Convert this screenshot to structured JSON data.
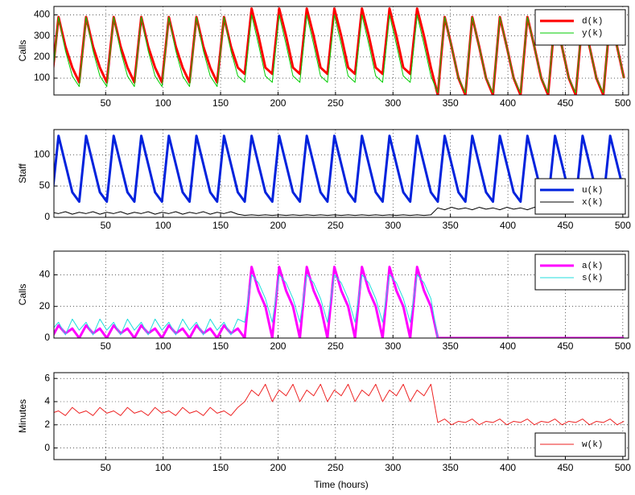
{
  "chart_data": [
    {
      "type": "line",
      "ylabel": "Calls",
      "x": [
        3,
        9,
        15,
        21,
        27,
        33,
        39,
        45,
        51,
        57,
        63,
        69,
        75,
        81,
        87,
        93,
        99,
        105,
        111,
        117,
        123,
        129,
        135,
        141,
        147,
        153,
        159,
        165,
        171,
        177,
        183,
        189,
        195,
        201,
        207,
        213,
        219,
        225,
        231,
        237,
        243,
        249,
        255,
        261,
        267,
        273,
        279,
        285,
        291,
        297,
        303,
        309,
        315,
        321,
        327,
        333,
        339,
        345,
        351,
        357,
        363,
        369,
        375,
        381,
        387,
        393,
        399,
        405,
        411,
        417,
        423,
        429,
        435,
        441,
        447,
        453,
        459,
        465,
        471,
        477,
        483,
        489,
        495,
        501
      ],
      "series": [
        {
          "name": "d(k)",
          "color": "#ff0000",
          "linewidth": 3,
          "values": [
            80,
            390,
            250,
            150,
            80,
            390,
            250,
            150,
            80,
            390,
            250,
            150,
            80,
            390,
            250,
            150,
            80,
            390,
            250,
            150,
            80,
            390,
            250,
            150,
            80,
            390,
            250,
            150,
            120,
            430,
            300,
            150,
            120,
            430,
            300,
            150,
            120,
            430,
            300,
            150,
            120,
            430,
            300,
            150,
            120,
            430,
            300,
            150,
            120,
            430,
            300,
            150,
            120,
            430,
            300,
            150,
            20,
            390,
            250,
            100,
            20,
            390,
            250,
            100,
            20,
            390,
            250,
            100,
            20,
            390,
            250,
            100,
            20,
            390,
            250,
            100,
            20,
            390,
            250,
            100,
            20,
            390,
            250,
            100
          ]
        },
        {
          "name": "y(k)",
          "color": "#00cc00",
          "linewidth": 1,
          "values": [
            60,
            390,
            230,
            110,
            60,
            390,
            230,
            110,
            60,
            390,
            230,
            110,
            60,
            390,
            230,
            110,
            60,
            390,
            230,
            110,
            60,
            390,
            230,
            110,
            60,
            390,
            230,
            110,
            80,
            400,
            260,
            110,
            80,
            400,
            260,
            110,
            80,
            400,
            260,
            110,
            80,
            400,
            260,
            110,
            80,
            400,
            260,
            110,
            80,
            400,
            260,
            110,
            80,
            400,
            260,
            110,
            30,
            390,
            250,
            100,
            30,
            390,
            250,
            100,
            30,
            390,
            250,
            100,
            30,
            390,
            250,
            100,
            30,
            390,
            250,
            100,
            30,
            390,
            250,
            100,
            30,
            390,
            250,
            100
          ]
        }
      ],
      "xlim": [
        5,
        505
      ],
      "xticks": [
        50,
        100,
        150,
        200,
        250,
        300,
        350,
        400,
        450,
        500
      ],
      "ylim": [
        20,
        440
      ],
      "yticks": [
        100,
        200,
        300,
        400
      ],
      "grid": true,
      "legend": "upper-right"
    },
    {
      "type": "line",
      "ylabel": "Staff",
      "x": [
        3,
        9,
        15,
        21,
        27,
        33,
        39,
        45,
        51,
        57,
        63,
        69,
        75,
        81,
        87,
        93,
        99,
        105,
        111,
        117,
        123,
        129,
        135,
        141,
        147,
        153,
        159,
        165,
        171,
        177,
        183,
        189,
        195,
        201,
        207,
        213,
        219,
        225,
        231,
        237,
        243,
        249,
        255,
        261,
        267,
        273,
        279,
        285,
        291,
        297,
        303,
        309,
        315,
        321,
        327,
        333,
        339,
        345,
        351,
        357,
        363,
        369,
        375,
        381,
        387,
        393,
        399,
        405,
        411,
        417,
        423,
        429,
        435,
        441,
        447,
        453,
        459,
        465,
        471,
        477,
        483,
        489,
        495,
        501
      ],
      "series": [
        {
          "name": "u(k)",
          "color": "#0022dd",
          "linewidth": 3,
          "values": [
            25,
            130,
            85,
            40,
            25,
            130,
            85,
            40,
            25,
            130,
            85,
            40,
            25,
            130,
            85,
            40,
            25,
            130,
            85,
            40,
            25,
            130,
            85,
            40,
            25,
            130,
            85,
            40,
            25,
            130,
            85,
            40,
            25,
            130,
            85,
            40,
            25,
            130,
            85,
            40,
            25,
            130,
            85,
            40,
            25,
            130,
            85,
            40,
            25,
            130,
            85,
            40,
            25,
            130,
            85,
            40,
            25,
            130,
            85,
            40,
            25,
            130,
            85,
            40,
            25,
            130,
            85,
            40,
            25,
            130,
            85,
            40,
            25,
            130,
            85,
            40,
            25,
            130,
            85,
            40,
            25,
            130,
            85,
            40
          ]
        },
        {
          "name": "x(k)",
          "color": "#000000",
          "linewidth": 1,
          "values": [
            8,
            6,
            9,
            5,
            8,
            6,
            9,
            5,
            8,
            6,
            9,
            5,
            8,
            6,
            9,
            5,
            8,
            6,
            9,
            5,
            8,
            6,
            9,
            5,
            8,
            6,
            9,
            5,
            3,
            4,
            3,
            4,
            3,
            4,
            3,
            4,
            3,
            4,
            3,
            4,
            3,
            4,
            3,
            4,
            3,
            4,
            3,
            4,
            3,
            4,
            3,
            4,
            3,
            4,
            3,
            4,
            15,
            12,
            16,
            13,
            15,
            12,
            16,
            13,
            15,
            12,
            16,
            13,
            15,
            12,
            16,
            13,
            15,
            12,
            16,
            13,
            15,
            12,
            16,
            13,
            15,
            12,
            16,
            13
          ]
        }
      ],
      "xlim": [
        5,
        505
      ],
      "xticks": [
        50,
        100,
        150,
        200,
        250,
        300,
        350,
        400,
        450,
        500
      ],
      "ylim": [
        0,
        140
      ],
      "yticks": [
        0,
        50,
        100
      ],
      "grid": true,
      "legend": "lower-right"
    },
    {
      "type": "line",
      "ylabel": "Calls",
      "x": [
        3,
        9,
        15,
        21,
        27,
        33,
        39,
        45,
        51,
        57,
        63,
        69,
        75,
        81,
        87,
        93,
        99,
        105,
        111,
        117,
        123,
        129,
        135,
        141,
        147,
        153,
        159,
        165,
        171,
        177,
        183,
        189,
        195,
        201,
        207,
        213,
        219,
        225,
        231,
        237,
        243,
        249,
        255,
        261,
        267,
        273,
        279,
        285,
        291,
        297,
        303,
        309,
        315,
        321,
        327,
        333,
        339,
        345,
        351,
        357,
        363,
        369,
        375,
        381,
        387,
        393,
        399,
        405,
        411,
        417,
        423,
        429,
        435,
        441,
        447,
        453,
        459,
        465,
        471,
        477,
        483,
        489,
        495,
        501
      ],
      "series": [
        {
          "name": "a(k)",
          "color": "#ff00ff",
          "linewidth": 3,
          "values": [
            0,
            8,
            3,
            6,
            0,
            8,
            3,
            6,
            0,
            8,
            3,
            6,
            0,
            8,
            3,
            6,
            0,
            8,
            3,
            6,
            0,
            8,
            3,
            6,
            0,
            8,
            3,
            6,
            0,
            45,
            30,
            20,
            0,
            45,
            30,
            20,
            0,
            45,
            30,
            20,
            0,
            45,
            30,
            20,
            0,
            45,
            30,
            20,
            0,
            45,
            30,
            20,
            0,
            45,
            30,
            20,
            0,
            0,
            0,
            0,
            0,
            0,
            0,
            0,
            0,
            0,
            0,
            0,
            0,
            0,
            0,
            0,
            0,
            0,
            0,
            0,
            0,
            0,
            0,
            0,
            0,
            0,
            0,
            0
          ]
        },
        {
          "name": "s(k)",
          "color": "#22dddd",
          "linewidth": 1,
          "values": [
            5,
            10,
            2,
            12,
            5,
            10,
            2,
            12,
            5,
            10,
            2,
            12,
            5,
            10,
            2,
            12,
            5,
            10,
            2,
            12,
            5,
            10,
            2,
            12,
            5,
            10,
            2,
            12,
            10,
            40,
            35,
            25,
            10,
            40,
            35,
            25,
            10,
            40,
            35,
            25,
            10,
            40,
            35,
            25,
            10,
            40,
            35,
            25,
            10,
            40,
            35,
            25,
            10,
            40,
            35,
            25,
            0,
            0,
            0,
            0,
            0,
            0,
            0,
            0,
            0,
            0,
            0,
            0,
            0,
            0,
            0,
            0,
            0,
            0,
            0,
            0,
            0,
            0,
            0,
            0,
            0,
            0,
            0,
            0
          ]
        }
      ],
      "xlim": [
        5,
        505
      ],
      "xticks": [
        50,
        100,
        150,
        200,
        250,
        300,
        350,
        400,
        450,
        500
      ],
      "ylim": [
        0,
        55
      ],
      "yticks": [
        0,
        20,
        40
      ],
      "grid": true,
      "legend": "upper-right"
    },
    {
      "type": "line",
      "ylabel": "Minutes",
      "xlabel": "Time (hours)",
      "x": [
        3,
        9,
        15,
        21,
        27,
        33,
        39,
        45,
        51,
        57,
        63,
        69,
        75,
        81,
        87,
        93,
        99,
        105,
        111,
        117,
        123,
        129,
        135,
        141,
        147,
        153,
        159,
        165,
        171,
        177,
        183,
        189,
        195,
        201,
        207,
        213,
        219,
        225,
        231,
        237,
        243,
        249,
        255,
        261,
        267,
        273,
        279,
        285,
        291,
        297,
        303,
        309,
        315,
        321,
        327,
        333,
        339,
        345,
        351,
        357,
        363,
        369,
        375,
        381,
        387,
        393,
        399,
        405,
        411,
        417,
        423,
        429,
        435,
        441,
        447,
        453,
        459,
        465,
        471,
        477,
        483,
        489,
        495,
        501
      ],
      "series": [
        {
          "name": "w(k)",
          "color": "#ee2222",
          "linewidth": 1,
          "values": [
            3,
            3.2,
            2.8,
            3.5,
            3,
            3.2,
            2.8,
            3.5,
            3,
            3.2,
            2.8,
            3.5,
            3,
            3.2,
            2.8,
            3.5,
            3,
            3.2,
            2.8,
            3.5,
            3,
            3.2,
            2.8,
            3.5,
            3,
            3.2,
            2.8,
            3.5,
            4,
            5,
            4.5,
            5.5,
            4,
            5,
            4.5,
            5.5,
            4,
            5,
            4.5,
            5.5,
            4,
            5,
            4.5,
            5.5,
            4,
            5,
            4.5,
            5.5,
            4,
            5,
            4.5,
            5.5,
            4,
            5,
            4.5,
            5.5,
            2.2,
            2.5,
            2,
            2.3,
            2.2,
            2.5,
            2,
            2.3,
            2.2,
            2.5,
            2,
            2.3,
            2.2,
            2.5,
            2,
            2.3,
            2.2,
            2.5,
            2,
            2.3,
            2.2,
            2.5,
            2,
            2.3,
            2.2,
            2.5,
            2,
            2.3
          ]
        }
      ],
      "xlim": [
        5,
        505
      ],
      "xticks": [
        50,
        100,
        150,
        200,
        250,
        300,
        350,
        400,
        450,
        500
      ],
      "ylim": [
        -1,
        6.5
      ],
      "yticks": [
        0,
        2,
        4,
        6
      ],
      "grid": true,
      "legend": "lower-right"
    }
  ]
}
